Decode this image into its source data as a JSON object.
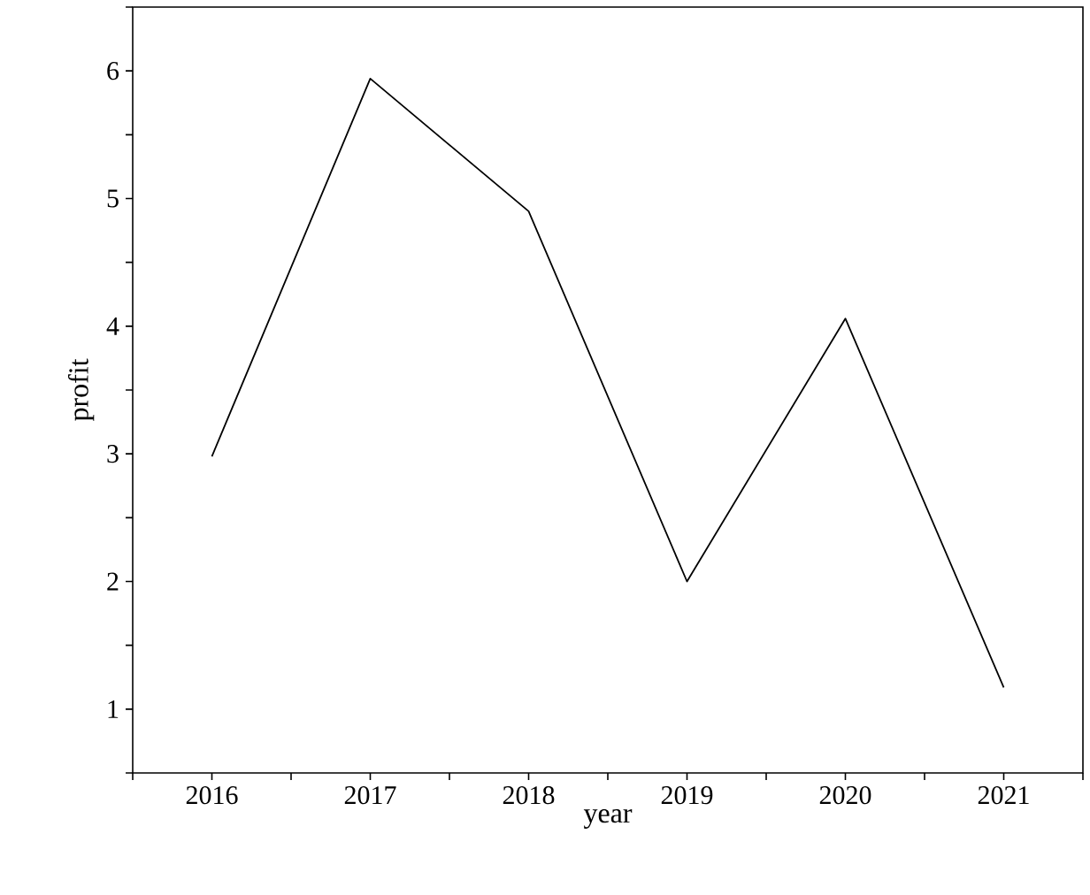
{
  "chart_data": {
    "type": "line",
    "xlabel": "year",
    "ylabel": "profit",
    "x": [
      2016,
      2017,
      2018,
      2019,
      2020,
      2021
    ],
    "series": [
      {
        "color": "#000000",
        "values": [
          2.98,
          5.94,
          4.9,
          2.0,
          4.06,
          1.17
        ]
      }
    ],
    "xlim": [
      2015.5,
      2021.5
    ],
    "xticks": [
      {
        "value": 2015.5,
        "label": null
      },
      2016,
      {
        "value": 2016.5,
        "label": null
      },
      2017,
      {
        "value": 2017.5,
        "label": null
      },
      2018,
      {
        "value": 2018.5,
        "label": null
      },
      2019,
      {
        "value": 2019.5,
        "label": null
      },
      2020,
      {
        "value": 2020.5,
        "label": null
      },
      2021,
      {
        "value": 2021.5,
        "label": null
      }
    ],
    "ylim": [
      0.5,
      6.5
    ],
    "yticks": [
      {
        "value": 0.5,
        "label": null
      },
      1,
      {
        "value": 1.5,
        "label": null
      },
      2,
      {
        "value": 2.5,
        "label": null
      },
      3,
      {
        "value": 3.5,
        "label": null
      },
      4,
      {
        "value": 4.5,
        "label": null
      },
      5,
      {
        "value": 5.5,
        "label": null
      },
      6,
      {
        "value": 6.5,
        "label": null
      }
    ],
    "marker": "none",
    "line_style": "solid"
  }
}
